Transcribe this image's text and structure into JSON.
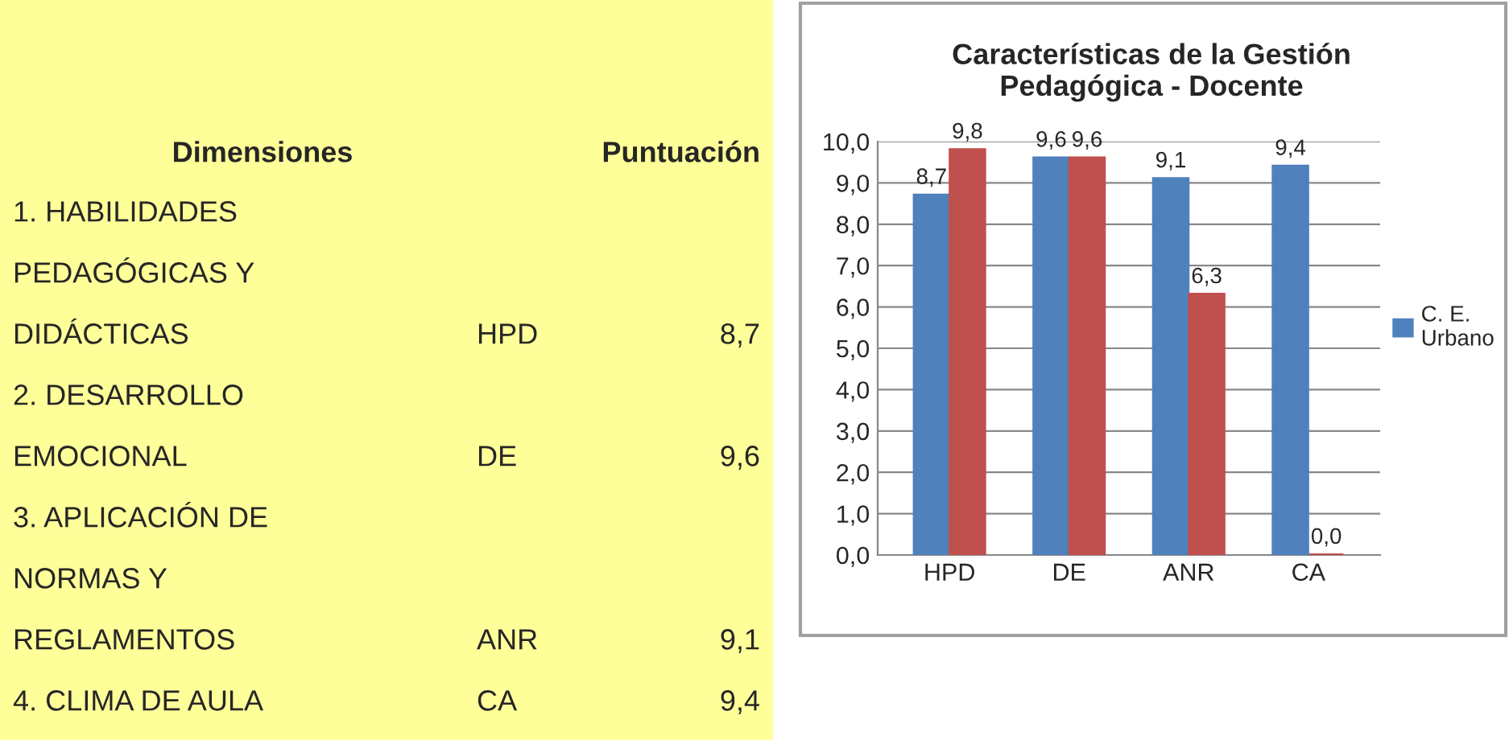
{
  "chart_data": [
    {
      "type": "other",
      "annotations": [
        "Dimensiones",
        "Puntuación"
      ],
      "categories": [
        "1. HABILIDADES\nPEDAGÓGICAS Y\nDIDÁCTICAS",
        "2. DESARROLLO\nEMOCIONAL",
        "3. APLICACIÓN DE\nNORMAS Y\nREGLAMENTOS",
        "4. CLIMA DE AULA"
      ],
      "y2_categories": [
        "HPD",
        "DE",
        "ANR",
        "CA"
      ],
      "value_labels": [
        "8,7",
        "9,6",
        "9,1",
        "9,4"
      ],
      "color": "#ffff99"
    },
    {
      "type": "bar",
      "title": "Características de la Gestión\nPedagógica - Docente",
      "categories": [
        "HPD",
        "DE",
        "ANR",
        "CA"
      ],
      "series": [
        {
          "name": "C. E.\nUrbano",
          "color": "#4f81bd",
          "values": [
            8.7,
            9.6,
            9.1,
            9.4
          ],
          "value_labels": [
            "8,7",
            "9,6",
            "9,1",
            "9,4"
          ]
        },
        {
          "color": "#c0504d",
          "values": [
            9.8,
            9.6,
            6.3,
            0.0
          ],
          "value_labels": [
            "9,8",
            "9,6",
            "6,3",
            "0,0"
          ]
        }
      ],
      "ylim": [
        0,
        10
      ],
      "yticks": [
        {
          "value": 0,
          "label": "0,0"
        },
        {
          "value": 1,
          "label": "1,0"
        },
        {
          "value": 2,
          "label": "2,0"
        },
        {
          "value": 3,
          "label": "3,0"
        },
        {
          "value": 4,
          "label": "4,0"
        },
        {
          "value": 5,
          "label": "5,0"
        },
        {
          "value": 6,
          "label": "6,0"
        },
        {
          "value": 7,
          "label": "7,0"
        },
        {
          "value": 8,
          "label": "8,0"
        },
        {
          "value": 9,
          "label": "9,0"
        },
        {
          "value": 10,
          "label": "10,0"
        }
      ],
      "grid": "y",
      "legend": "right"
    }
  ]
}
